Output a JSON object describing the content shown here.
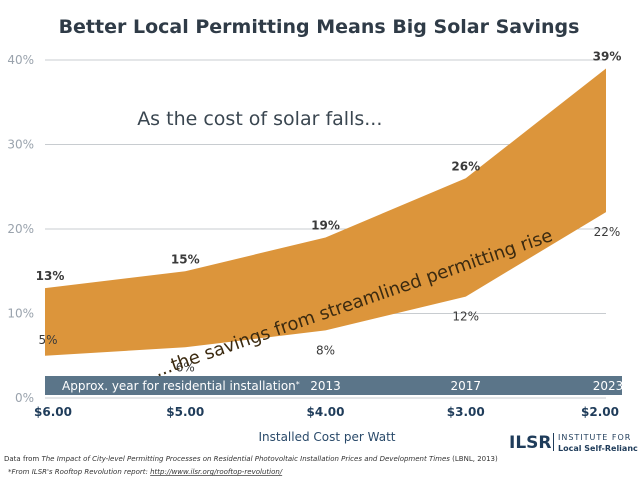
{
  "chart_data": {
    "type": "area",
    "title": "Better Local Permitting Means Big Solar Savings",
    "xlabel": "Installed Cost per Watt",
    "ylabel": "",
    "ylim": [
      0,
      40
    ],
    "yticks": [
      "0%",
      "10%",
      "20%",
      "30%",
      "40%"
    ],
    "yticks_values": [
      0,
      10,
      20,
      30,
      40
    ],
    "categories": [
      "$6.00",
      "$5.00",
      "$4.00",
      "$3.00",
      "$2.00"
    ],
    "x": [
      6,
      5,
      4,
      3,
      2
    ],
    "grid": true,
    "series": [
      {
        "values": [
          13,
          15,
          19,
          26,
          39
        ],
        "labels": [
          "13%",
          "15%",
          "19%",
          "26%",
          "39%"
        ]
      },
      {
        "values": [
          5,
          6,
          8,
          12,
          22
        ],
        "labels": [
          "5%",
          "6%",
          "8%",
          "12%",
          "22%"
        ]
      }
    ],
    "band_color": "#dc953b",
    "year_band": {
      "label": "Approx. year for residential installation",
      "label_marker": "*",
      "years": [
        {
          "x": 4,
          "label": "2013"
        },
        {
          "x": 3,
          "label": "2017"
        },
        {
          "x": 2,
          "label": "2023"
        }
      ],
      "color": "#5b7589"
    },
    "annotations": [
      {
        "text": "As the cost of solar falls...",
        "x": 5.2,
        "y": 33
      },
      {
        "text": "...the savings from streamlined permitting rise",
        "x": 4,
        "y": 12
      }
    ]
  },
  "footer": {
    "source_prefix": "Data from ",
    "source_title": "The Impact of City-level Permitting Processes on Residential Photovoltaic Installation Prices and Development Times",
    "source_suffix": " (LBNL, 2013)",
    "note_prefix": "*From ILSR's Rooftop Revolution report: ",
    "note_link": "http://www.ilsr.org/rooftop-revolution/"
  },
  "logo": {
    "mark": "ILSR",
    "line1": "INSTITUTE FOR",
    "line2": "Local Self-Reliance"
  }
}
